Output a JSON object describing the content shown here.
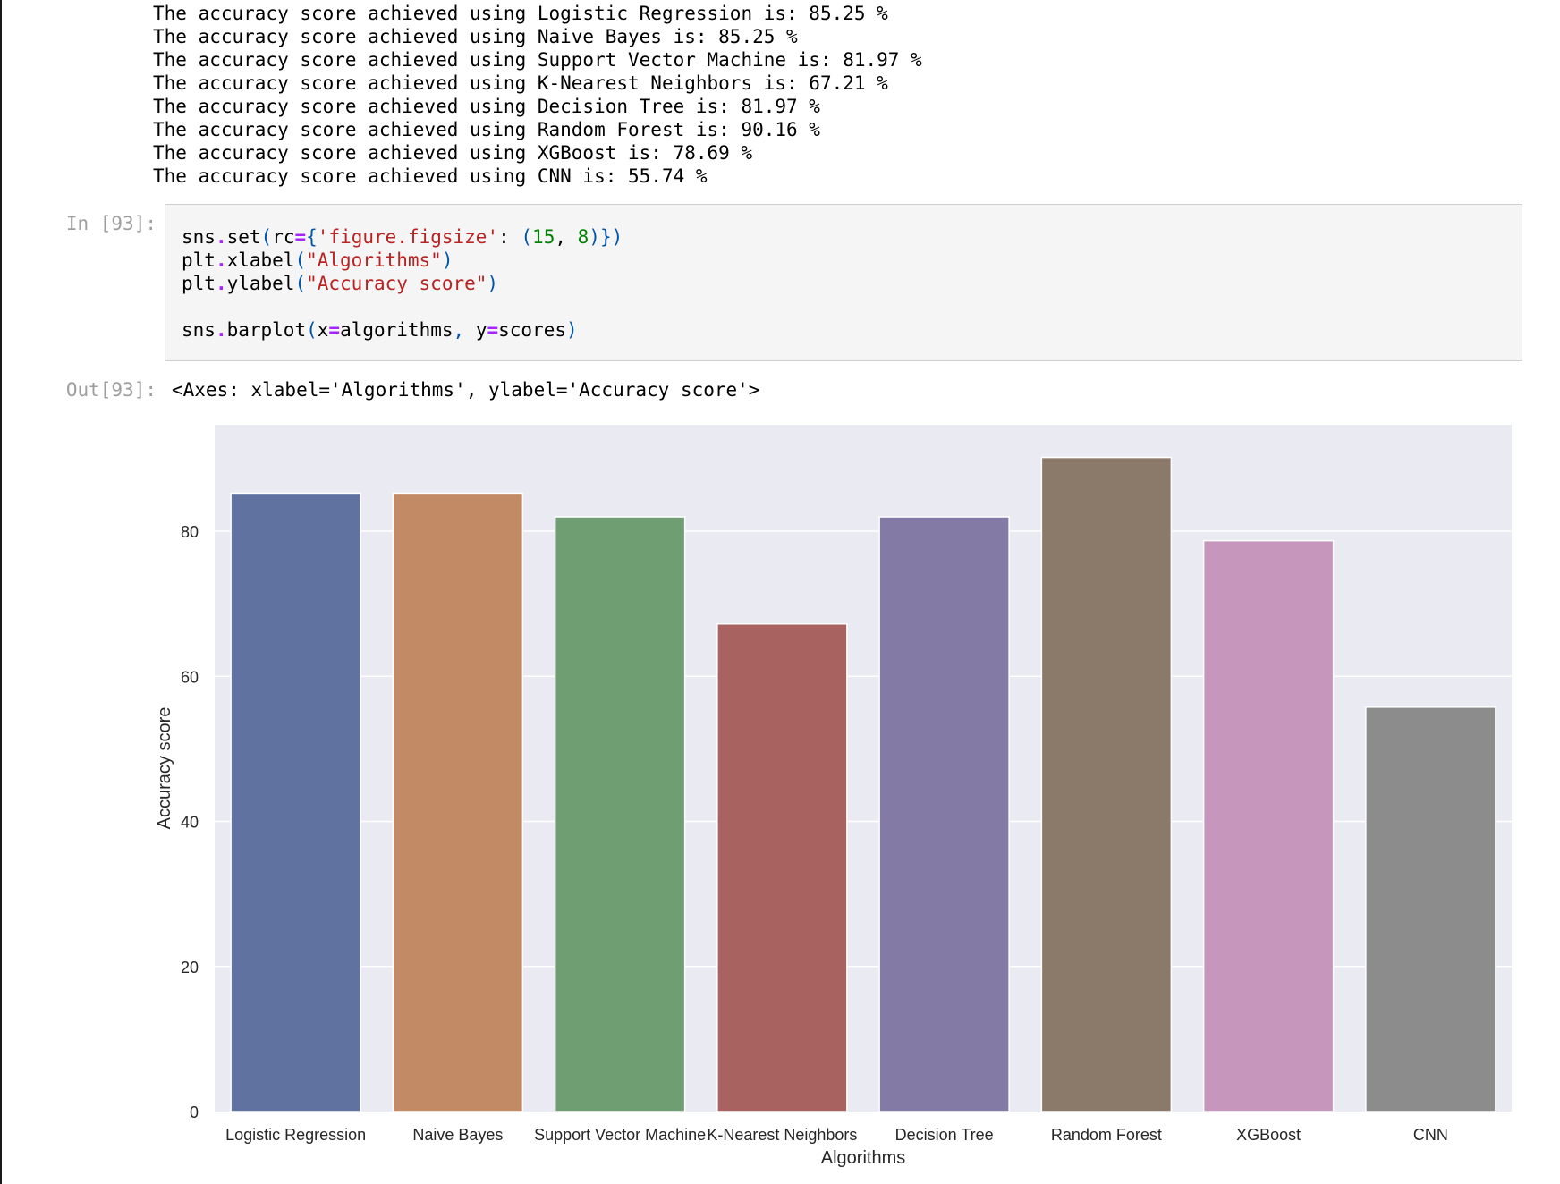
{
  "stdout_lines": [
    "The accuracy score achieved using Logistic Regression is: 85.25 %",
    "The accuracy score achieved using Naive Bayes is: 85.25 %",
    "The accuracy score achieved using Support Vector Machine is: 81.97 %",
    "The accuracy score achieved using K-Nearest Neighbors is: 67.21 %",
    "The accuracy score achieved using Decision Tree is: 81.97 %",
    "The accuracy score achieved using Random Forest is: 90.16 %",
    "The accuracy score achieved using XGBoost is: 78.69 %",
    "The accuracy score achieved using CNN is: 55.74 %"
  ],
  "cell": {
    "in_prompt": "In [93]:",
    "out_prompt": "Out[93]:",
    "code": {
      "line1": {
        "a": "sns",
        "dot": ".",
        "b": "set",
        "p1": "(",
        "c": "rc",
        "eq": "=",
        "p2": "{",
        "s1": "'figure.figsize'",
        "colon": ": ",
        "p3": "(",
        "n1": "15",
        "comma": ", ",
        "n2": "8",
        "p4": ")})"
      },
      "line2": {
        "a": "plt",
        "dot": ".",
        "b": "xlabel",
        "p1": "(",
        "s": "\"Algorithms\"",
        "p2": ")"
      },
      "line3": {
        "a": "plt",
        "dot": ".",
        "b": "ylabel",
        "p1": "(",
        "s": "\"Accuracy score\"",
        "p2": ")"
      },
      "line5": {
        "a": "sns",
        "dot": ".",
        "b": "barplot",
        "p1": "(",
        "c": "x",
        "eq": "=",
        "d": "algorithms",
        "comma": ", ",
        "e": "y",
        "eq2": "=",
        "f": "scores",
        "p2": ")"
      }
    },
    "output_text": "<Axes: xlabel='Algorithms', ylabel='Accuracy score'>"
  },
  "chart_data": {
    "type": "bar",
    "categories": [
      "Logistic Regression",
      "Naive Bayes",
      "Support Vector Machine",
      "K-Nearest Neighbors",
      "Decision Tree",
      "Random Forest",
      "XGBoost",
      "CNN"
    ],
    "values": [
      85.25,
      85.25,
      81.97,
      67.21,
      81.97,
      90.16,
      78.69,
      55.74
    ],
    "colors": [
      "#6073a0",
      "#c28b66",
      "#6f9e73",
      "#a86260",
      "#847aa6",
      "#8b7a69",
      "#c796bd",
      "#8c8c8c"
    ],
    "title": "",
    "xlabel": "Algorithms",
    "ylabel": "Accuracy score",
    "ylim": [
      0,
      94.67
    ],
    "yticks": [
      "0",
      "20",
      "40",
      "60",
      "80"
    ],
    "grid": true,
    "background": "#eaeaf2",
    "gridcolor": "#ffffff"
  }
}
